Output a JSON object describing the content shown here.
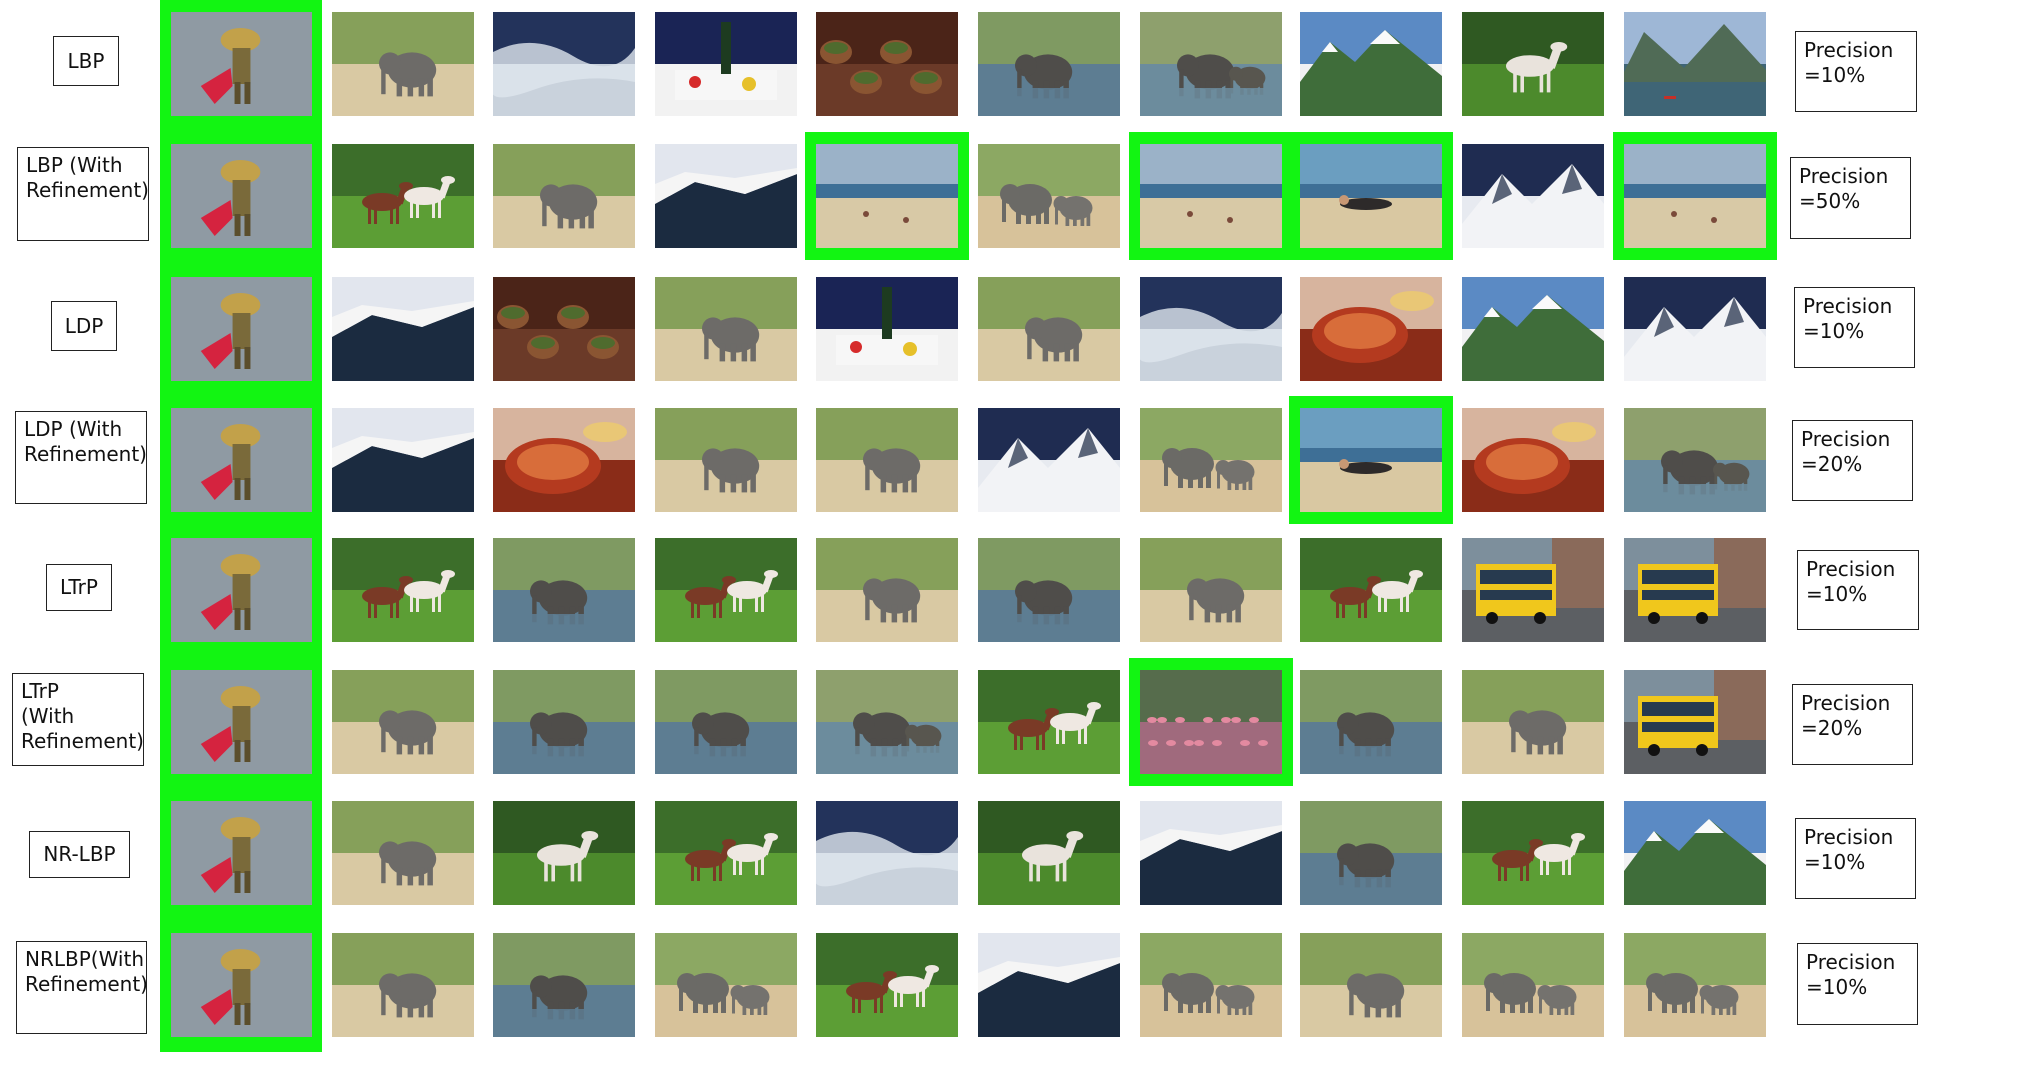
{
  "rows": [
    {
      "method": "LBP",
      "precision": "Precision\n=10%",
      "relevant": []
    },
    {
      "method": "LBP (With\nRefinement)",
      "precision": "Precision\n=50%",
      "relevant": [
        3,
        5,
        6,
        8
      ]
    },
    {
      "method": "LDP",
      "precision": "Precision\n=10%",
      "relevant": []
    },
    {
      "method": "LDP (With\nRefinement)",
      "precision": "Precision\n=20%",
      "relevant": [
        6
      ]
    },
    {
      "method": "LTrP",
      "precision": "Precision\n=10%",
      "relevant": []
    },
    {
      "method": "LTrP\n(With\nRefinement)",
      "precision": "Precision\n=20%",
      "relevant": [
        5
      ]
    },
    {
      "method": "NR-LBP",
      "precision": "Precision\n=10%",
      "relevant": []
    },
    {
      "method": "NRLBP(With\nRefinement)",
      "precision": "Precision\n=10%",
      "relevant": []
    }
  ],
  "scenes": [
    [
      "elephant",
      "ocean",
      "wine",
      "cake",
      "elephant-water",
      "elephants-water",
      "mountain",
      "horse",
      "lake"
    ],
    [
      "horses",
      "elephant",
      "coast",
      "beach",
      "elephants",
      "beach",
      "beach-person",
      "snow-mountain",
      "beach"
    ],
    [
      "coast",
      "cake",
      "elephant",
      "wine",
      "elephant",
      "ocean",
      "food",
      "mountain",
      "snow-mountain"
    ],
    [
      "coast",
      "food",
      "elephant",
      "elephant",
      "snow-mountain",
      "elephants",
      "beach-person",
      "food",
      "elephants-water"
    ],
    [
      "horses",
      "elephant-water",
      "horses",
      "elephant",
      "elephant-water",
      "elephant",
      "horses",
      "bus",
      "bus"
    ],
    [
      "elephant",
      "elephant-water",
      "elephant-water",
      "elephants-water",
      "horses",
      "flamingos",
      "elephant-water",
      "elephant",
      "bus"
    ],
    [
      "elephant",
      "horse",
      "horses",
      "ocean",
      "horse",
      "coast",
      "elephant-water",
      "horses",
      "mountain"
    ],
    [
      "elephant",
      "elephant-water",
      "elephants",
      "horses",
      "coast",
      "elephants",
      "elephant",
      "elephants",
      "elephants"
    ]
  ],
  "colors": {
    "highlight": "#12f512",
    "query_bg": "#8f9aa3",
    "query_figure": "#c2a14a",
    "query_flag": "#d5233f"
  }
}
